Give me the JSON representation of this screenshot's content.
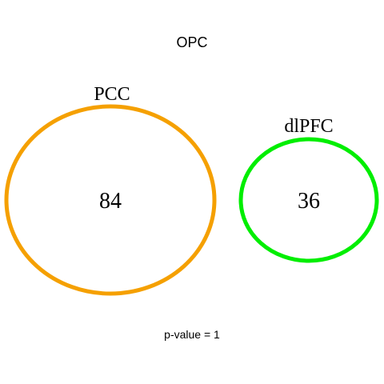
{
  "title": "OPC",
  "sets": [
    {
      "label": "PCC",
      "count": "84",
      "color": "#F5A000"
    },
    {
      "label": "dlPFC",
      "count": "36",
      "color": "#00EE00"
    }
  ],
  "p_value_text": "p-value = 1"
}
